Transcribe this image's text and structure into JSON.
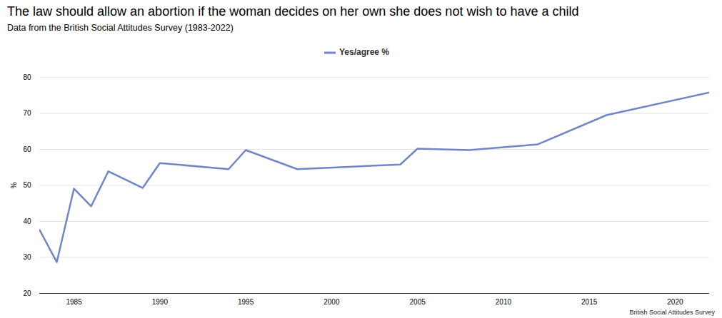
{
  "chart_data": {
    "type": "line",
    "title": "The law should allow an abortion if the woman decides on her own she does not wish to have a child",
    "subtitle": "Data from the British Social Attitudes Survey (1983-2022)",
    "caption": "British Social Attitudes Survey",
    "y_label": "%",
    "x": [
      1983,
      1984,
      1985,
      1986,
      1987,
      1989,
      1990,
      1994,
      1995,
      1998,
      2004,
      2005,
      2008,
      2012,
      2016,
      2022
    ],
    "series": [
      {
        "name": "Yes/agree %",
        "color": "#7086c8",
        "values": [
          37.6,
          28.7,
          49.1,
          44.2,
          53.9,
          49.3,
          56.2,
          54.5,
          59.8,
          54.5,
          55.8,
          60.2,
          59.8,
          61.4,
          69.5,
          75.8
        ]
      }
    ],
    "xlim": [
      1983,
      2022
    ],
    "xticks": [
      1985,
      1990,
      1995,
      2000,
      2005,
      2010,
      2015,
      2020
    ],
    "ylim": [
      20,
      80
    ],
    "yticks": [
      20,
      30,
      40,
      50,
      60,
      70,
      80
    ],
    "grid": true,
    "legend": "top"
  }
}
